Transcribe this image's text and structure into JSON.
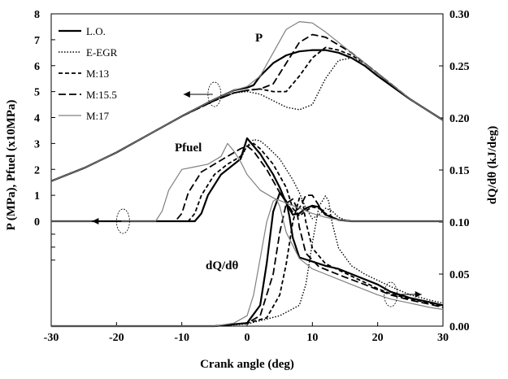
{
  "chart_data": {
    "type": "line",
    "title": "",
    "xlabel": "Crank angle (deg)",
    "ylabel_left": "P (MPa), Pfuel (x10MPa)",
    "ylabel_right": "dQ/dθ (kJ/deg)",
    "xlim": [
      -30,
      30
    ],
    "ylim_left": [
      0,
      8
    ],
    "ylim_right": [
      0,
      0.3
    ],
    "x_ticks": [
      "-30",
      "-20",
      "-10",
      "0",
      "10",
      "20",
      "30"
    ],
    "y_left_ticks": [
      "0",
      "1",
      "2",
      "3",
      "4",
      "5",
      "6",
      "7",
      "8"
    ],
    "y_right_ticks": [
      "0.00",
      "0.05",
      "0.10",
      "0.15",
      "0.20",
      "0.25",
      "0.30"
    ],
    "grid": false,
    "legend_position": "top-left",
    "annotations": [
      "P",
      "Pfuel",
      "dQ/dθ"
    ],
    "series": [
      {
        "name": "L.O.",
        "color": "#000000",
        "style": "solid-thick",
        "P": {
          "x": [
            -30,
            -25,
            -20,
            -15,
            -10,
            -5,
            -2,
            0,
            1,
            2,
            4,
            6,
            8,
            10,
            12,
            14,
            16,
            18,
            20,
            25,
            30
          ],
          "y": [
            1.55,
            2.05,
            2.65,
            3.35,
            4.05,
            4.7,
            5.05,
            5.15,
            5.25,
            5.6,
            6.1,
            6.4,
            6.55,
            6.6,
            6.6,
            6.5,
            6.3,
            6.0,
            5.6,
            4.7,
            3.9
          ]
        },
        "Pfuel": {
          "x": [
            -30,
            -8,
            -7,
            -6,
            -4,
            -2,
            -1,
            0,
            1,
            2,
            3,
            4,
            5,
            6,
            7,
            8,
            9,
            10,
            11,
            12,
            14,
            16,
            20,
            30
          ],
          "y": [
            0,
            0,
            0.3,
            1.0,
            1.8,
            2.2,
            2.4,
            3.2,
            2.9,
            2.6,
            2.2,
            1.8,
            1.3,
            0.7,
            0.25,
            0.3,
            0.5,
            0.6,
            0.55,
            0.25,
            0.05,
            0,
            0,
            0
          ]
        },
        "dQ": {
          "x": [
            -30,
            -5,
            0,
            2,
            3,
            4,
            5,
            6,
            6.5,
            7,
            8,
            10,
            12,
            14,
            16,
            18,
            20,
            22,
            25,
            28,
            30
          ],
          "y": [
            0,
            0,
            0.003,
            0.02,
            0.06,
            0.11,
            0.128,
            0.12,
            0.105,
            0.085,
            0.066,
            0.062,
            0.058,
            0.055,
            0.05,
            0.045,
            0.04,
            0.033,
            0.027,
            0.023,
            0.02
          ]
        }
      },
      {
        "name": "E-EGR",
        "color": "#000000",
        "style": "dotted",
        "P": {
          "x": [
            -30,
            -25,
            -20,
            -15,
            -10,
            -5,
            -2,
            0,
            2,
            4,
            6,
            8,
            10,
            12,
            14,
            16,
            18,
            20,
            25,
            30
          ],
          "y": [
            1.55,
            2.05,
            2.65,
            3.35,
            4.05,
            4.65,
            4.95,
            5.0,
            4.9,
            4.65,
            4.4,
            4.3,
            4.5,
            5.5,
            6.2,
            6.3,
            6.1,
            5.7,
            4.7,
            3.9
          ]
        },
        "Pfuel": {
          "x": [
            -30,
            -8,
            -7,
            -6,
            -4,
            -2,
            -1,
            0,
            1,
            2,
            3,
            5,
            7,
            8,
            9,
            10,
            11,
            12,
            13,
            14,
            15,
            16,
            20,
            30
          ],
          "y": [
            0,
            0,
            0.3,
            1.0,
            1.8,
            2.2,
            2.4,
            2.9,
            3.15,
            3.1,
            2.9,
            2.4,
            1.6,
            1.1,
            0.5,
            0.1,
            0.25,
            0.5,
            0.4,
            0.15,
            0.05,
            0,
            0,
            0
          ]
        },
        "dQ": {
          "x": [
            -30,
            -5,
            0,
            5,
            8,
            9,
            10,
            11,
            12,
            12.5,
            13,
            14,
            16,
            18,
            20,
            22,
            25,
            28,
            30
          ],
          "y": [
            0,
            0,
            0.002,
            0.01,
            0.02,
            0.04,
            0.08,
            0.115,
            0.125,
            0.12,
            0.1,
            0.075,
            0.058,
            0.05,
            0.044,
            0.038,
            0.03,
            0.025,
            0.022
          ]
        }
      },
      {
        "name": "M:13",
        "color": "#000000",
        "style": "dashed-short",
        "P": {
          "x": [
            -30,
            -25,
            -20,
            -15,
            -10,
            -5,
            -2,
            0,
            2,
            4,
            6,
            8,
            10,
            12,
            14,
            16,
            18,
            20,
            25,
            30
          ],
          "y": [
            1.55,
            2.05,
            2.65,
            3.35,
            4.05,
            4.65,
            4.95,
            5.05,
            5.1,
            5.0,
            5.0,
            5.6,
            6.3,
            6.7,
            6.6,
            6.4,
            6.1,
            5.7,
            4.7,
            3.9
          ]
        },
        "Pfuel": {
          "x": [
            -30,
            -9,
            -8,
            -7,
            -5,
            -3,
            -1,
            0,
            1,
            2,
            4,
            6,
            7,
            8,
            9,
            10,
            11,
            12,
            14,
            16,
            20,
            30
          ],
          "y": [
            0,
            0,
            0.3,
            1.0,
            1.8,
            2.2,
            2.5,
            2.9,
            3.0,
            2.8,
            2.2,
            1.3,
            0.5,
            0.2,
            0.4,
            0.55,
            0.5,
            0.3,
            0.05,
            0,
            0,
            0
          ]
        },
        "dQ": {
          "x": [
            -30,
            -5,
            0,
            3,
            5,
            6,
            7,
            8,
            8.5,
            9,
            10,
            12,
            14,
            16,
            18,
            20,
            22,
            25,
            28,
            30
          ],
          "y": [
            0,
            0,
            0.003,
            0.008,
            0.03,
            0.06,
            0.1,
            0.123,
            0.12,
            0.1,
            0.075,
            0.06,
            0.054,
            0.048,
            0.042,
            0.036,
            0.031,
            0.026,
            0.022,
            0.019
          ]
        }
      },
      {
        "name": "M:15.5",
        "color": "#000000",
        "style": "dashed-long",
        "P": {
          "x": [
            -30,
            -25,
            -20,
            -15,
            -10,
            -5,
            -2,
            0,
            2,
            4,
            6,
            8,
            10,
            12,
            14,
            16,
            18,
            20,
            25,
            30
          ],
          "y": [
            1.55,
            2.05,
            2.65,
            3.35,
            4.05,
            4.65,
            4.95,
            5.05,
            5.1,
            5.3,
            6.1,
            6.9,
            7.2,
            7.1,
            6.8,
            6.5,
            6.1,
            5.7,
            4.7,
            3.9
          ]
        },
        "Pfuel": {
          "x": [
            -30,
            -11,
            -10,
            -9,
            -7,
            -5,
            -3,
            -1,
            0,
            1,
            3,
            5,
            7,
            8,
            9,
            10,
            11,
            12,
            14,
            16,
            20,
            30
          ],
          "y": [
            0,
            0,
            0.3,
            1.1,
            1.9,
            2.2,
            2.5,
            2.8,
            2.9,
            2.7,
            2.0,
            1.1,
            0.35,
            0.5,
            1.0,
            1.0,
            0.6,
            0.25,
            0.05,
            0,
            0,
            0
          ]
        },
        "dQ": {
          "x": [
            -30,
            -5,
            0,
            2,
            4,
            5,
            6,
            7,
            7.5,
            8,
            9,
            11,
            13,
            15,
            18,
            20,
            22,
            25,
            28,
            30
          ],
          "y": [
            0,
            0,
            0.003,
            0.01,
            0.05,
            0.09,
            0.118,
            0.122,
            0.115,
            0.095,
            0.07,
            0.057,
            0.052,
            0.047,
            0.04,
            0.035,
            0.03,
            0.025,
            0.021,
            0.018
          ]
        }
      },
      {
        "name": "M:17",
        "color": "#808080",
        "style": "solid-thin",
        "P": {
          "x": [
            -30,
            -25,
            -20,
            -15,
            -10,
            -5,
            -2,
            0,
            2,
            4,
            6,
            8,
            10,
            12,
            14,
            16,
            18,
            20,
            25,
            30
          ],
          "y": [
            1.55,
            2.05,
            2.65,
            3.35,
            4.05,
            4.7,
            5.05,
            5.2,
            5.6,
            6.5,
            7.4,
            7.7,
            7.65,
            7.3,
            6.9,
            6.5,
            6.1,
            5.7,
            4.7,
            3.9
          ]
        },
        "Pfuel": {
          "x": [
            -30,
            -14,
            -13,
            -12,
            -10,
            -8,
            -6,
            -4,
            -3,
            -2,
            -1,
            0,
            2,
            4,
            6,
            8,
            10,
            12,
            14,
            16,
            20,
            30
          ],
          "y": [
            0,
            0,
            0.4,
            1.2,
            2.0,
            2.1,
            2.2,
            2.5,
            3.0,
            2.7,
            2.3,
            1.8,
            1.2,
            0.9,
            0.7,
            0.5,
            0.3,
            0.15,
            0.05,
            0,
            0,
            0
          ]
        },
        "dQ": {
          "x": [
            -30,
            -5,
            -2,
            0,
            1,
            2,
            3,
            4,
            4.5,
            5,
            6,
            8,
            10,
            12,
            14,
            16,
            18,
            20,
            22,
            25,
            28,
            30
          ],
          "y": [
            0,
            0,
            0.003,
            0.01,
            0.03,
            0.065,
            0.1,
            0.12,
            0.122,
            0.115,
            0.09,
            0.065,
            0.055,
            0.05,
            0.045,
            0.04,
            0.035,
            0.03,
            0.026,
            0.022,
            0.018,
            0.016
          ]
        }
      }
    ]
  }
}
